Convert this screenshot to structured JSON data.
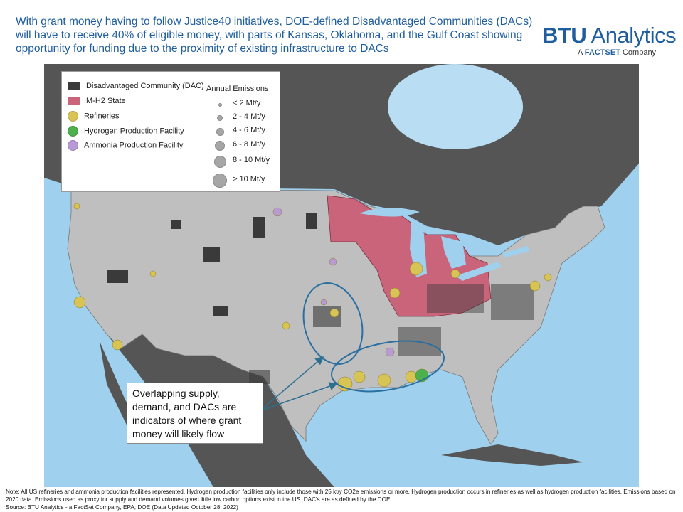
{
  "header": {
    "title": "With grant money having to follow Justice40 initiatives, DOE-defined  Disadvantaged Communities (DACs) will have to receive 40% of eligible money, with parts of Kansas, Oklahoma, and the Gulf Coast showing opportunity for funding due to the proximity of existing infrastructure to DACs",
    "logo": {
      "brand": "BTU",
      "name": "Analytics",
      "tagline_prefix": "A",
      "tagline_brand": "FACTSET",
      "tagline_suffix": "Company"
    }
  },
  "legend": {
    "items": [
      "Disadvantaged Community (DAC)",
      "M-H2 State",
      "Refineries",
      "Hydrogen Production Facility",
      "Ammonia Production Facility"
    ],
    "emissions_title": "Annual Emissions",
    "emissions": [
      "< 2 Mt/y",
      "2 - 4 Mt/y",
      "4 - 6 Mt/y",
      "6 - 8 Mt/y",
      "8 - 10 Mt/y",
      "> 10 Mt/y"
    ]
  },
  "callout": "Overlapping supply, demand, and DACs are indicators of where grant money will likely flow",
  "footer": {
    "note": "Note: All US refineries and ammonia production facilities represented. Hydrogen production facilities only include those with 25 kt/y CO2e emissions or more. Hydrogen production occurs in refineries as well as hydrogen production facilities. Emissions based on 2020 data. Emissions used as proxy for supply and demand volumes given little low carbon options exist in the US. DAC's are as defined by the DOE.",
    "source": "Source: BTU Analytics - a FactSet Company, EPA, DOE (Data Updated October 28, 2022)"
  }
}
